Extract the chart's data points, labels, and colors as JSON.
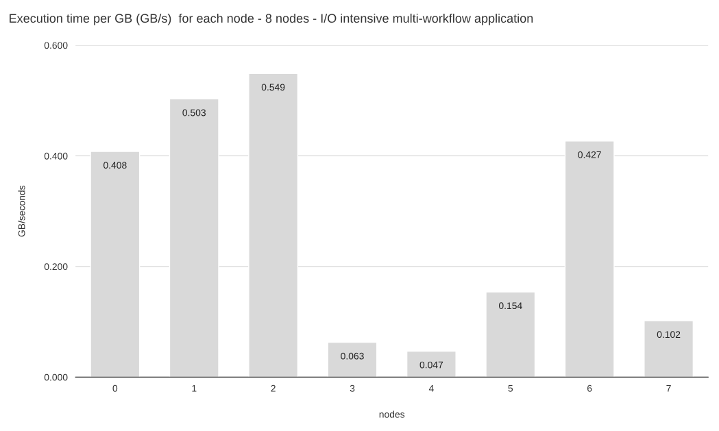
{
  "chart_data": {
    "type": "bar",
    "title": "Execution time per GB (GB/s)  for each node - 8 nodes - I/O intensive multi-workflow application",
    "xlabel": "nodes",
    "ylabel": "GB/seconds",
    "categories": [
      "0",
      "1",
      "2",
      "3",
      "4",
      "5",
      "6",
      "7"
    ],
    "values": [
      0.408,
      0.503,
      0.549,
      0.063,
      0.047,
      0.154,
      0.427,
      0.102
    ],
    "color": "#d9d9d9",
    "ylim": [
      0,
      0.6
    ],
    "yticks": [
      {
        "value": 0,
        "label": "0.000"
      },
      {
        "value": 0.2,
        "label": "0.200"
      },
      {
        "value": 0.4,
        "label": "0.400"
      },
      {
        "value": 0.6,
        "label": "0.600"
      }
    ],
    "grid": "y",
    "data_labels": true
  }
}
